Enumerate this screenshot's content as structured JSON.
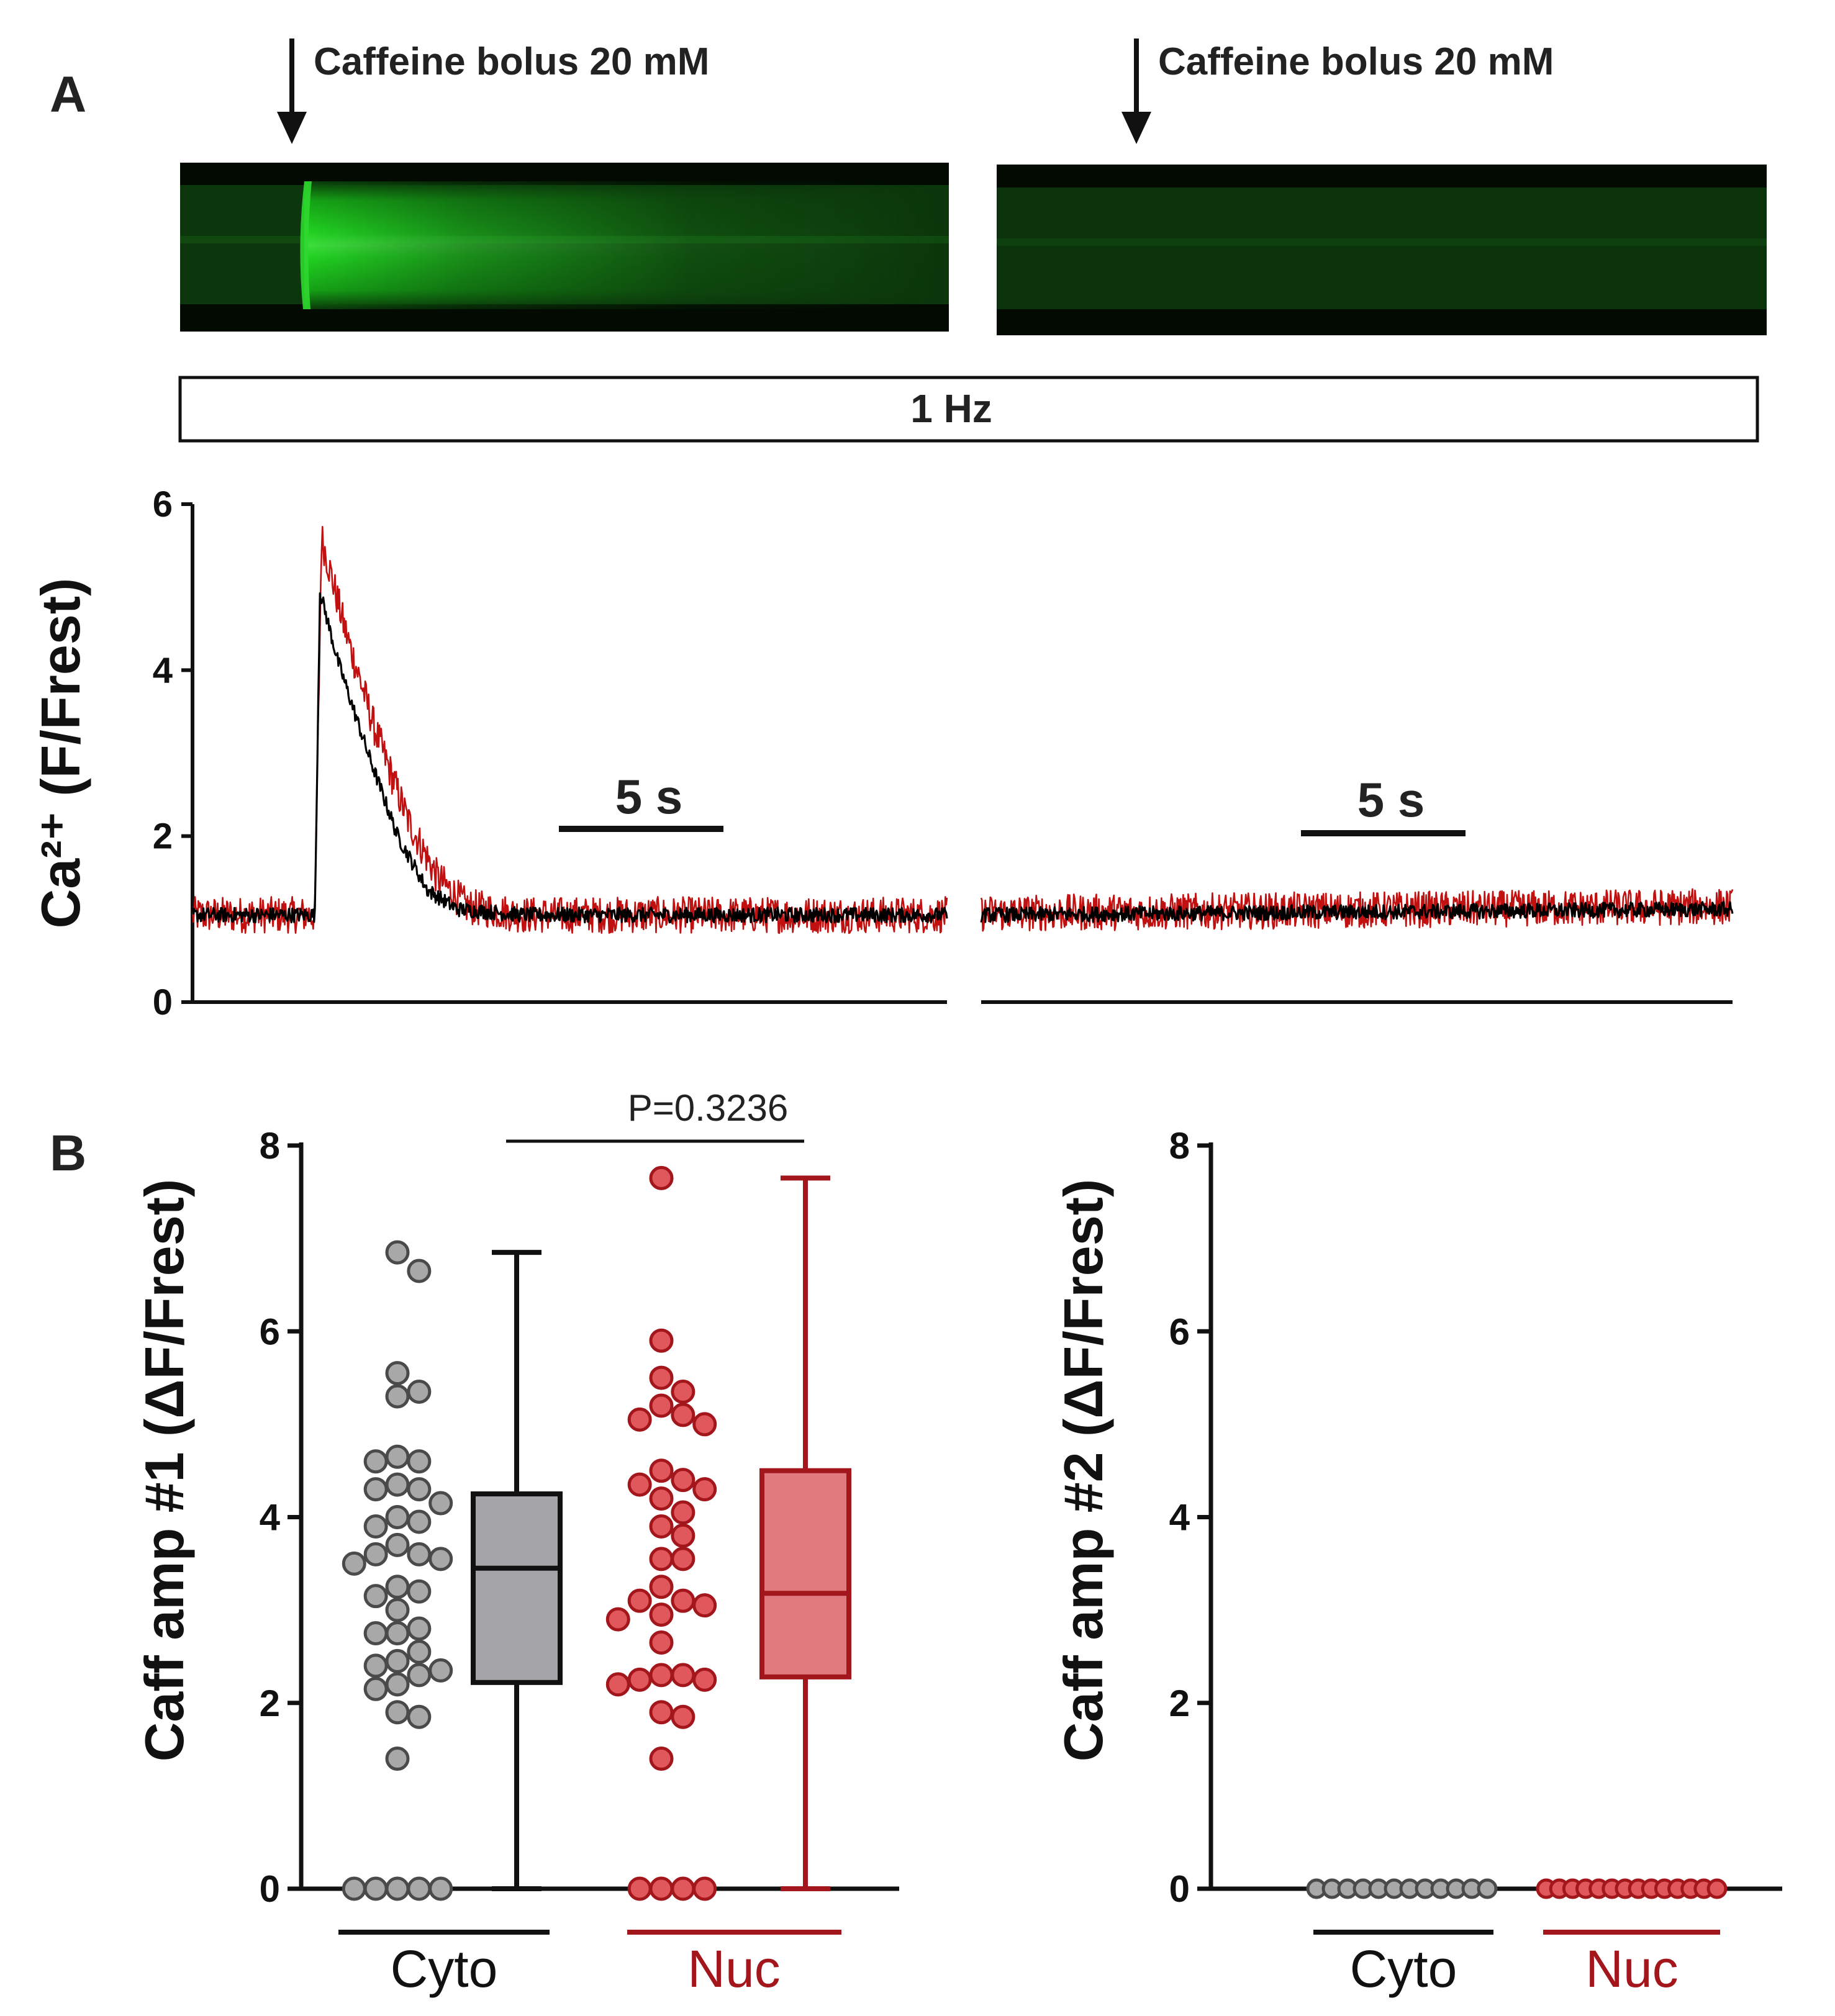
{
  "panel_a": {
    "label": "A",
    "left": {
      "caffeine_label": "Caffeine bolus 20 mM",
      "scale_bar_label": "5 s"
    },
    "right": {
      "caffeine_label": "Caffeine bolus 20 mM",
      "scale_bar_label": "5 s"
    },
    "stimulation_label": "1 Hz",
    "linescan_colors": {
      "bright": "#1fcf1f",
      "dim": "#0c3d0c",
      "edge": "#020a02"
    }
  },
  "panel_b": {
    "label": "B",
    "p_value": "P=0.3236",
    "colors": {
      "cyto_point": "#a8a8a8",
      "cyto_box": "#a5a5a9",
      "nuc_point": "#e0575c",
      "nuc_box": "#e07a7f",
      "nuc_dark": "#a3161b"
    }
  },
  "chart_data": [
    {
      "type": "line",
      "panel": "A (left)",
      "ylabel": "Ca²⁺ (F/Frest)",
      "ylim": [
        0,
        6
      ],
      "yticks": [
        0,
        2,
        4,
        6
      ],
      "time_window_s": [
        0,
        22.8
      ],
      "series": [
        {
          "name": "Cyto",
          "color": "#000000",
          "points": [
            [
              0,
              1.05
            ],
            [
              3.7,
              1.05
            ],
            [
              3.85,
              4.95
            ],
            [
              4.4,
              4.1
            ],
            [
              5.3,
              3.0
            ],
            [
              6.2,
              2.0
            ],
            [
              7.1,
              1.35
            ],
            [
              8.0,
              1.12
            ],
            [
              10,
              1.05
            ],
            [
              22.8,
              1.05
            ]
          ]
        },
        {
          "name": "Nuc",
          "color": "#c01010",
          "points": [
            [
              0,
              1.05
            ],
            [
              3.7,
              1.05
            ],
            [
              3.9,
              5.6
            ],
            [
              4.6,
              4.5
            ],
            [
              5.5,
              3.3
            ],
            [
              6.5,
              2.2
            ],
            [
              7.4,
              1.5
            ],
            [
              8.3,
              1.15
            ],
            [
              10,
              1.05
            ],
            [
              22.8,
              1.05
            ]
          ]
        }
      ]
    },
    {
      "type": "line",
      "panel": "A (right)",
      "ylim": [
        0,
        6
      ],
      "time_window_s": [
        0,
        22.8
      ],
      "series": [
        {
          "name": "Cyto",
          "color": "#000000",
          "points": [
            [
              0,
              1.05
            ],
            [
              22.8,
              1.12
            ]
          ]
        },
        {
          "name": "Nuc",
          "color": "#c01010",
          "points": [
            [
              0,
              1.07
            ],
            [
              22.8,
              1.15
            ]
          ]
        }
      ]
    },
    {
      "type": "scatter",
      "panel": "B (left)",
      "ylabel": "Caff amp #1 (ΔF/Frest)",
      "ylim": [
        0,
        8
      ],
      "yticks": [
        0,
        2,
        4,
        6,
        8
      ],
      "categories": [
        "Cyto",
        "Nuc"
      ],
      "series": [
        {
          "name": "Cyto",
          "values": [
            6.85,
            6.65,
            5.55,
            5.35,
            5.3,
            4.65,
            4.6,
            4.6,
            4.35,
            4.3,
            4.3,
            4.15,
            4.0,
            3.95,
            3.9,
            3.7,
            3.6,
            3.6,
            3.55,
            3.5,
            3.25,
            3.2,
            3.15,
            3.0,
            2.8,
            2.75,
            2.75,
            2.55,
            2.45,
            2.4,
            2.35,
            2.3,
            2.2,
            2.15,
            1.9,
            1.85,
            1.4,
            0,
            0,
            0,
            0,
            0
          ],
          "box": {
            "min": 0,
            "q1": 2.22,
            "median": 3.45,
            "q3": 4.25,
            "max": 6.85
          }
        },
        {
          "name": "Nuc",
          "values": [
            7.65,
            5.9,
            5.5,
            5.35,
            5.2,
            5.1,
            5.05,
            5.0,
            4.5,
            4.4,
            4.35,
            4.3,
            4.2,
            4.05,
            3.9,
            3.8,
            3.55,
            3.55,
            3.25,
            3.1,
            3.1,
            3.05,
            2.95,
            2.9,
            2.65,
            2.3,
            2.3,
            2.25,
            2.25,
            2.2,
            1.9,
            1.85,
            1.4,
            0,
            0,
            0,
            0
          ],
          "box": {
            "min": 0,
            "q1": 2.28,
            "median": 3.18,
            "q3": 4.5,
            "max": 7.65
          }
        }
      ]
    },
    {
      "type": "scatter",
      "panel": "B (right)",
      "ylabel": "Caff amp #2 (ΔF/Frest)",
      "ylim": [
        0,
        8
      ],
      "yticks": [
        0,
        2,
        4,
        6,
        8
      ],
      "categories": [
        "Cyto",
        "Nuc"
      ],
      "series": [
        {
          "name": "Cyto",
          "values": [
            0,
            0,
            0,
            0,
            0,
            0,
            0,
            0,
            0,
            0,
            0,
            0
          ]
        },
        {
          "name": "Nuc",
          "values": [
            0,
            0,
            0,
            0,
            0,
            0,
            0,
            0,
            0,
            0,
            0,
            0,
            0,
            0
          ]
        }
      ]
    }
  ]
}
